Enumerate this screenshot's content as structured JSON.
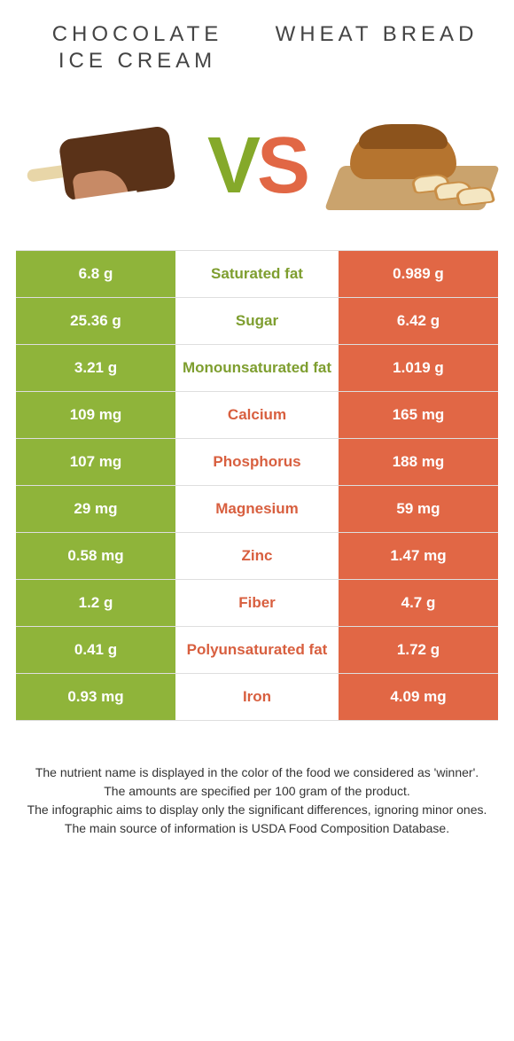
{
  "colors": {
    "left": "#8fb43a",
    "right": "#e16745",
    "left_label": "#7e9e2f",
    "right_label": "#d85f3f",
    "row_border": "#dedede"
  },
  "left_title": "CHOCOLATE ICE CREAM",
  "right_title": "WHEAT BREAD",
  "vs": {
    "v": "V",
    "s": "S"
  },
  "rows": [
    {
      "label": "Saturated fat",
      "left": "6.8 g",
      "right": "0.989 g",
      "winner": "left"
    },
    {
      "label": "Sugar",
      "left": "25.36 g",
      "right": "6.42 g",
      "winner": "left"
    },
    {
      "label": "Monounsaturated fat",
      "left": "3.21 g",
      "right": "1.019 g",
      "winner": "left"
    },
    {
      "label": "Calcium",
      "left": "109 mg",
      "right": "165 mg",
      "winner": "right"
    },
    {
      "label": "Phosphorus",
      "left": "107 mg",
      "right": "188 mg",
      "winner": "right"
    },
    {
      "label": "Magnesium",
      "left": "29 mg",
      "right": "59 mg",
      "winner": "right"
    },
    {
      "label": "Zinc",
      "left": "0.58 mg",
      "right": "1.47 mg",
      "winner": "right"
    },
    {
      "label": "Fiber",
      "left": "1.2 g",
      "right": "4.7 g",
      "winner": "right"
    },
    {
      "label": "Polyunsaturated fat",
      "left": "0.41 g",
      "right": "1.72 g",
      "winner": "right"
    },
    {
      "label": "Iron",
      "left": "0.93 mg",
      "right": "4.09 mg",
      "winner": "right"
    }
  ],
  "footer": [
    "The nutrient name is displayed in the color of the food we considered as 'winner'.",
    "The amounts are specified per 100 gram of the product.",
    "The infographic aims to display only the significant differences, ignoring minor ones.",
    "The main source of information is USDA Food Composition Database."
  ]
}
